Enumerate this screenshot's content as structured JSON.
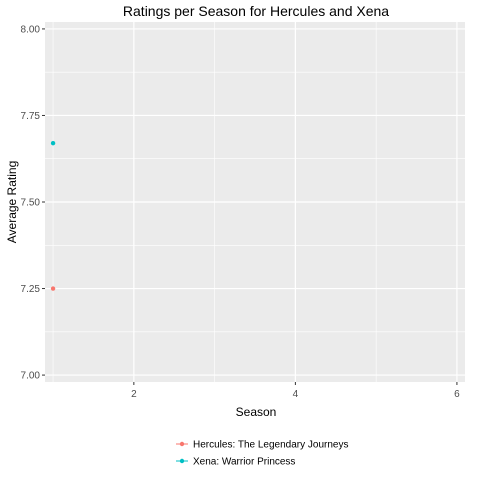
{
  "chart_data": {
    "type": "scatter",
    "title": "Ratings per Season for Hercules and Xena",
    "xlabel": "Season",
    "ylabel": "Average Rating",
    "xlim": [
      0.9,
      6.1
    ],
    "ylim": [
      6.98,
      8.02
    ],
    "x_ticks": [
      2,
      4,
      6
    ],
    "x_tick_labels": [
      "2",
      "4",
      "6"
    ],
    "y_ticks": [
      7.0,
      7.25,
      7.5,
      7.75,
      8.0
    ],
    "y_tick_labels": [
      "7.00",
      "7.25",
      "7.50",
      "7.75",
      "8.00"
    ],
    "grid": true,
    "legend_position": "bottom",
    "series": [
      {
        "name": "Hercules: The Legendary Journeys",
        "color": "#F8766D",
        "x": [
          1
        ],
        "y": [
          7.25
        ]
      },
      {
        "name": "Xena: Warrior Princess",
        "color": "#00BFC4",
        "x": [
          1
        ],
        "y": [
          7.67
        ]
      }
    ]
  }
}
